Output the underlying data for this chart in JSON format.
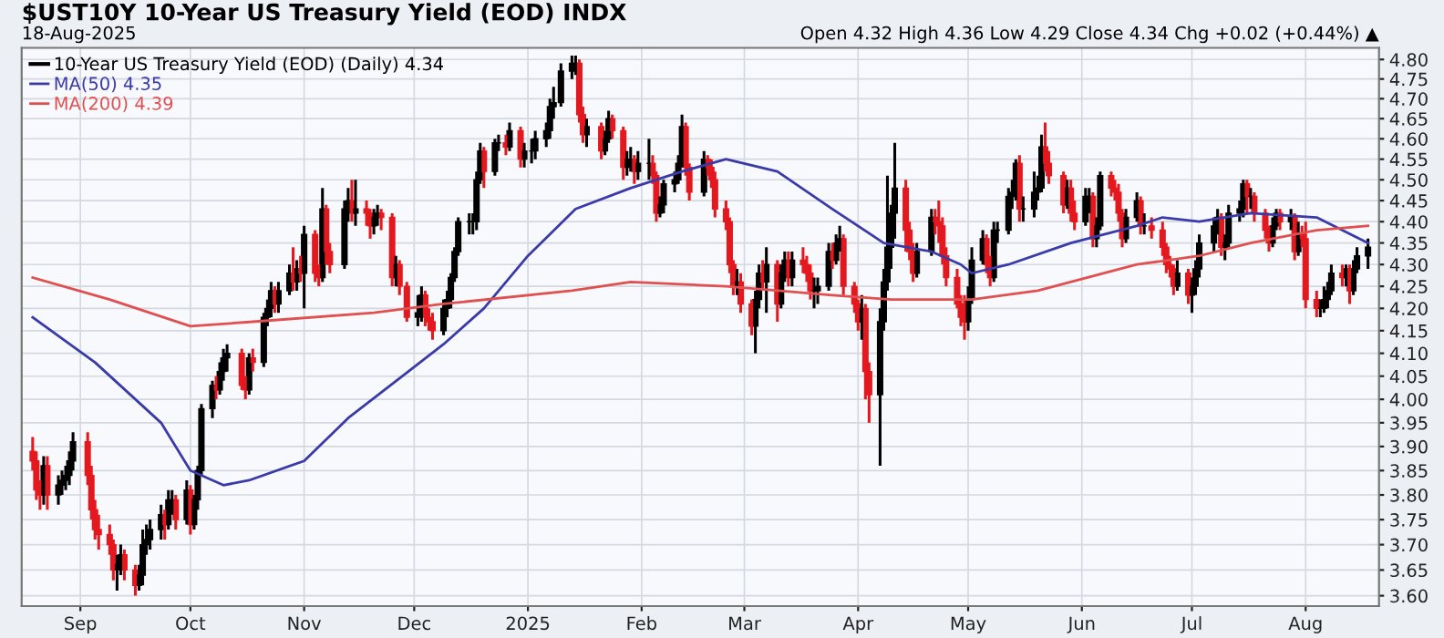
{
  "chart_data": {
    "type": "candlestick",
    "title": "$UST10Y 10-Year US Treasury Yield (EOD) INDX",
    "subtitle": "18-Aug-2025",
    "annotations": [
      "Open 4.32 High 4.36 Low 4.29 Close 4.34 Chg +0.02 (+0.44%) ▲"
    ],
    "log": true,
    "grid": true,
    "legend": "top left",
    "xlim": [
      "2024-08-16",
      "2025-08-21"
    ],
    "xticks": [
      {
        "value": "2024-09-01",
        "label": "Sep"
      },
      {
        "value": "2024-10-01",
        "label": "Oct"
      },
      {
        "value": "2024-11-01",
        "label": "Nov"
      },
      {
        "value": "2024-12-01",
        "label": "Dec"
      },
      {
        "value": "2025-01-01",
        "label": "2025"
      },
      {
        "value": "2025-02-01",
        "label": "Feb"
      },
      {
        "value": "2025-03-01",
        "label": "Mar"
      },
      {
        "value": "2025-04-01",
        "label": "Apr"
      },
      {
        "value": "2025-05-01",
        "label": "May"
      },
      {
        "value": "2025-06-01",
        "label": "Jun"
      },
      {
        "value": "2025-07-01",
        "label": "Jul"
      },
      {
        "value": "2025-08-01",
        "label": "Aug"
      }
    ],
    "ylim": [
      3.58,
      4.83
    ],
    "yticks": [
      {
        "value": 3.6,
        "label": "3.60"
      },
      3.65,
      {
        "value": 3.7,
        "label": "3.70"
      },
      3.75,
      {
        "value": 3.8,
        "label": "3.80"
      },
      3.85,
      {
        "value": 3.9,
        "label": "3.90"
      },
      3.95,
      {
        "value": 4.0,
        "label": "4.00"
      },
      4.05,
      {
        "value": 4.1,
        "label": "4.10"
      },
      4.15,
      {
        "value": 4.2,
        "label": "4.20"
      },
      4.25,
      {
        "value": 4.3,
        "label": "4.30"
      },
      4.35,
      {
        "value": 4.4,
        "label": "4.40"
      },
      4.45,
      {
        "value": 4.5,
        "label": "4.50"
      },
      4.55,
      {
        "value": 4.6,
        "label": "4.60"
      },
      4.65,
      {
        "value": 4.7,
        "label": "4.70"
      },
      4.75,
      {
        "value": 4.8,
        "label": "4.80"
      }
    ],
    "series": [
      {
        "name": "10-Year US Treasury Yield (EOD) (Daily) 4.34",
        "color": "#000000",
        "x": [
          "2024-08-19",
          "2024-08-20",
          "2024-08-21",
          "2024-08-22",
          "2024-08-23",
          "2024-08-26",
          "2024-08-27",
          "2024-08-28",
          "2024-08-29",
          "2024-08-30",
          "2024-09-03",
          "2024-09-04",
          "2024-09-05",
          "2024-09-06",
          "2024-09-09",
          "2024-09-10",
          "2024-09-11",
          "2024-09-12",
          "2024-09-13",
          "2024-09-16",
          "2024-09-17",
          "2024-09-18",
          "2024-09-19",
          "2024-09-20",
          "2024-09-23",
          "2024-09-24",
          "2024-09-25",
          "2024-09-26",
          "2024-09-27",
          "2024-09-30",
          "2024-10-01",
          "2024-10-02",
          "2024-10-03",
          "2024-10-04",
          "2024-10-07",
          "2024-10-08",
          "2024-10-09",
          "2024-10-10",
          "2024-10-11",
          "2024-10-15",
          "2024-10-16",
          "2024-10-17",
          "2024-10-18",
          "2024-10-21",
          "2024-10-22",
          "2024-10-23",
          "2024-10-24",
          "2024-10-25",
          "2024-10-28",
          "2024-10-29",
          "2024-10-30",
          "2024-10-31",
          "2024-11-01",
          "2024-11-04",
          "2024-11-05",
          "2024-11-06",
          "2024-11-07",
          "2024-11-08",
          "2024-11-12",
          "2024-11-13",
          "2024-11-14",
          "2024-11-15",
          "2024-11-18",
          "2024-11-19",
          "2024-11-20",
          "2024-11-21",
          "2024-11-22",
          "2024-11-25",
          "2024-11-26",
          "2024-11-27",
          "2024-11-29",
          "2024-12-02",
          "2024-12-03",
          "2024-12-04",
          "2024-12-05",
          "2024-12-06",
          "2024-12-09",
          "2024-12-10",
          "2024-12-11",
          "2024-12-12",
          "2024-12-13",
          "2024-12-16",
          "2024-12-17",
          "2024-12-18",
          "2024-12-19",
          "2024-12-20",
          "2024-12-23",
          "2024-12-24",
          "2024-12-26",
          "2024-12-27",
          "2024-12-30",
          "2024-12-31",
          "2025-01-02",
          "2025-01-03",
          "2025-01-06",
          "2025-01-07",
          "2025-01-08",
          "2025-01-10",
          "2025-01-13",
          "2025-01-14",
          "2025-01-15",
          "2025-01-16",
          "2025-01-17",
          "2025-01-21",
          "2025-01-22",
          "2025-01-23",
          "2025-01-24",
          "2025-01-27",
          "2025-01-28",
          "2025-01-29",
          "2025-01-30",
          "2025-01-31",
          "2025-02-03",
          "2025-02-04",
          "2025-02-05",
          "2025-02-06",
          "2025-02-07",
          "2025-02-10",
          "2025-02-11",
          "2025-02-12",
          "2025-02-13",
          "2025-02-14",
          "2025-02-18",
          "2025-02-19",
          "2025-02-20",
          "2025-02-21",
          "2025-02-24",
          "2025-02-25",
          "2025-02-26",
          "2025-02-27",
          "2025-02-28",
          "2025-03-03",
          "2025-03-04",
          "2025-03-05",
          "2025-03-06",
          "2025-03-07",
          "2025-03-10",
          "2025-03-11",
          "2025-03-12",
          "2025-03-13",
          "2025-03-14",
          "2025-03-17",
          "2025-03-18",
          "2025-03-19",
          "2025-03-20",
          "2025-03-21",
          "2025-03-24",
          "2025-03-25",
          "2025-03-26",
          "2025-03-27",
          "2025-03-28",
          "2025-03-31",
          "2025-04-01",
          "2025-04-02",
          "2025-04-03",
          "2025-04-04",
          "2025-04-07",
          "2025-04-08",
          "2025-04-09",
          "2025-04-10",
          "2025-04-11",
          "2025-04-14",
          "2025-04-15",
          "2025-04-16",
          "2025-04-17",
          "2025-04-21",
          "2025-04-22",
          "2025-04-23",
          "2025-04-24",
          "2025-04-25",
          "2025-04-28",
          "2025-04-29",
          "2025-04-30",
          "2025-05-01",
          "2025-05-02",
          "2025-05-05",
          "2025-05-06",
          "2025-05-07",
          "2025-05-08",
          "2025-05-09",
          "2025-05-12",
          "2025-05-13",
          "2025-05-14",
          "2025-05-15",
          "2025-05-16",
          "2025-05-19",
          "2025-05-20",
          "2025-05-21",
          "2025-05-22",
          "2025-05-23",
          "2025-05-27",
          "2025-05-28",
          "2025-05-29",
          "2025-05-30",
          "2025-06-02",
          "2025-06-03",
          "2025-06-04",
          "2025-06-05",
          "2025-06-06",
          "2025-06-09",
          "2025-06-10",
          "2025-06-11",
          "2025-06-12",
          "2025-06-13",
          "2025-06-16",
          "2025-06-17",
          "2025-06-18",
          "2025-06-20",
          "2025-06-23",
          "2025-06-24",
          "2025-06-25",
          "2025-06-26",
          "2025-06-27",
          "2025-06-30",
          "2025-07-01",
          "2025-07-02",
          "2025-07-03",
          "2025-07-07",
          "2025-07-08",
          "2025-07-09",
          "2025-07-10",
          "2025-07-11",
          "2025-07-14",
          "2025-07-15",
          "2025-07-16",
          "2025-07-17",
          "2025-07-18",
          "2025-07-21",
          "2025-07-22",
          "2025-07-23",
          "2025-07-24",
          "2025-07-25",
          "2025-07-28",
          "2025-07-29",
          "2025-07-30",
          "2025-07-31",
          "2025-08-01",
          "2025-08-04",
          "2025-08-05",
          "2025-08-06",
          "2025-08-07",
          "2025-08-08",
          "2025-08-11",
          "2025-08-12",
          "2025-08-13",
          "2025-08-14",
          "2025-08-15",
          "2025-08-18"
        ],
        "ohlc": [
          [
            3.89,
            3.92,
            3.85,
            3.87
          ],
          [
            3.87,
            3.89,
            3.79,
            3.81
          ],
          [
            3.81,
            3.83,
            3.77,
            3.8
          ],
          [
            3.8,
            3.88,
            3.78,
            3.86
          ],
          [
            3.86,
            3.88,
            3.77,
            3.8
          ],
          [
            3.8,
            3.84,
            3.78,
            3.82
          ],
          [
            3.82,
            3.85,
            3.8,
            3.83
          ],
          [
            3.83,
            3.86,
            3.81,
            3.84
          ],
          [
            3.84,
            3.89,
            3.82,
            3.87
          ],
          [
            3.87,
            3.93,
            3.85,
            3.91
          ],
          [
            3.91,
            3.93,
            3.82,
            3.84
          ],
          [
            3.84,
            3.86,
            3.75,
            3.77
          ],
          [
            3.77,
            3.79,
            3.71,
            3.73
          ],
          [
            3.73,
            3.76,
            3.69,
            3.72
          ],
          [
            3.72,
            3.74,
            3.68,
            3.7
          ],
          [
            3.7,
            3.71,
            3.63,
            3.65
          ],
          [
            3.65,
            3.68,
            3.61,
            3.66
          ],
          [
            3.66,
            3.7,
            3.64,
            3.68
          ],
          [
            3.68,
            3.69,
            3.63,
            3.65
          ],
          [
            3.65,
            3.66,
            3.6,
            3.62
          ],
          [
            3.62,
            3.66,
            3.61,
            3.64
          ],
          [
            3.64,
            3.73,
            3.62,
            3.7
          ],
          [
            3.7,
            3.74,
            3.68,
            3.71
          ],
          [
            3.71,
            3.75,
            3.69,
            3.73
          ],
          [
            3.73,
            3.78,
            3.71,
            3.76
          ],
          [
            3.76,
            3.77,
            3.71,
            3.74
          ],
          [
            3.74,
            3.81,
            3.73,
            3.79
          ],
          [
            3.79,
            3.81,
            3.76,
            3.79
          ],
          [
            3.79,
            3.8,
            3.73,
            3.75
          ],
          [
            3.75,
            3.83,
            3.74,
            3.81
          ],
          [
            3.81,
            3.82,
            3.72,
            3.74
          ],
          [
            3.74,
            3.8,
            3.73,
            3.79
          ],
          [
            3.79,
            3.86,
            3.77,
            3.85
          ],
          [
            3.85,
            3.99,
            3.84,
            3.98
          ],
          [
            3.98,
            4.04,
            3.96,
            4.03
          ],
          [
            4.03,
            4.05,
            4.0,
            4.02
          ],
          [
            4.02,
            4.08,
            4.01,
            4.06
          ],
          [
            4.06,
            4.11,
            4.04,
            4.09
          ],
          [
            4.09,
            4.12,
            4.06,
            4.1
          ],
          [
            4.1,
            4.11,
            4.02,
            4.03
          ],
          [
            4.03,
            4.05,
            4.0,
            4.02
          ],
          [
            4.02,
            4.1,
            4.01,
            4.09
          ],
          [
            4.09,
            4.11,
            4.06,
            4.08
          ],
          [
            4.08,
            4.19,
            4.07,
            4.18
          ],
          [
            4.18,
            4.22,
            4.16,
            4.2
          ],
          [
            4.2,
            4.26,
            4.18,
            4.24
          ],
          [
            4.24,
            4.25,
            4.19,
            4.21
          ],
          [
            4.21,
            4.26,
            4.19,
            4.24
          ],
          [
            4.24,
            4.3,
            4.23,
            4.28
          ],
          [
            4.28,
            4.34,
            4.24,
            4.26
          ],
          [
            4.26,
            4.31,
            4.24,
            4.29
          ],
          [
            4.29,
            4.32,
            4.26,
            4.28
          ],
          [
            4.28,
            4.39,
            4.2,
            4.37
          ],
          [
            4.37,
            4.38,
            4.26,
            4.28
          ],
          [
            4.28,
            4.3,
            4.25,
            4.27
          ],
          [
            4.27,
            4.48,
            4.26,
            4.43
          ],
          [
            4.43,
            4.44,
            4.3,
            4.33
          ],
          [
            4.33,
            4.35,
            4.28,
            4.3
          ],
          [
            4.3,
            4.45,
            4.29,
            4.43
          ],
          [
            4.43,
            4.48,
            4.4,
            4.45
          ],
          [
            4.45,
            4.5,
            4.4,
            4.42
          ],
          [
            4.42,
            4.5,
            4.39,
            4.43
          ],
          [
            4.43,
            4.45,
            4.39,
            4.42
          ],
          [
            4.42,
            4.43,
            4.36,
            4.39
          ],
          [
            4.39,
            4.43,
            4.37,
            4.41
          ],
          [
            4.41,
            4.44,
            4.39,
            4.42
          ],
          [
            4.42,
            4.43,
            4.38,
            4.41
          ],
          [
            4.41,
            4.42,
            4.25,
            4.27
          ],
          [
            4.27,
            4.32,
            4.25,
            4.3
          ],
          [
            4.3,
            4.31,
            4.23,
            4.25
          ],
          [
            4.25,
            4.26,
            4.17,
            4.18
          ],
          [
            4.18,
            4.23,
            4.16,
            4.19
          ],
          [
            4.19,
            4.25,
            4.17,
            4.23
          ],
          [
            4.23,
            4.24,
            4.16,
            4.18
          ],
          [
            4.18,
            4.2,
            4.15,
            4.17
          ],
          [
            4.17,
            4.19,
            4.13,
            4.15
          ],
          [
            4.15,
            4.22,
            4.14,
            4.2
          ],
          [
            4.2,
            4.24,
            4.18,
            4.22
          ],
          [
            4.22,
            4.28,
            4.2,
            4.27
          ],
          [
            4.27,
            4.34,
            4.26,
            4.33
          ],
          [
            4.33,
            4.41,
            4.32,
            4.4
          ],
          [
            4.4,
            4.42,
            4.37,
            4.4
          ],
          [
            4.4,
            4.42,
            4.37,
            4.4
          ],
          [
            4.4,
            4.52,
            4.38,
            4.5
          ],
          [
            4.5,
            4.59,
            4.49,
            4.57
          ],
          [
            4.57,
            4.58,
            4.48,
            4.52
          ],
          [
            4.52,
            4.6,
            4.51,
            4.59
          ],
          [
            4.59,
            4.61,
            4.57,
            4.59
          ],
          [
            4.59,
            4.61,
            4.56,
            4.58
          ],
          [
            4.58,
            4.64,
            4.57,
            4.62
          ],
          [
            4.62,
            4.63,
            4.53,
            4.55
          ],
          [
            4.55,
            4.59,
            4.53,
            4.57
          ],
          [
            4.57,
            4.6,
            4.54,
            4.57
          ],
          [
            4.57,
            4.62,
            4.55,
            4.6
          ],
          [
            4.6,
            4.64,
            4.58,
            4.62
          ],
          [
            4.62,
            4.7,
            4.6,
            4.68
          ],
          [
            4.68,
            4.73,
            4.65,
            4.69
          ],
          [
            4.69,
            4.79,
            4.68,
            4.77
          ],
          [
            4.77,
            4.81,
            4.75,
            4.79
          ],
          [
            4.79,
            4.81,
            4.76,
            4.79
          ],
          [
            4.79,
            4.8,
            4.64,
            4.66
          ],
          [
            4.66,
            4.68,
            4.59,
            4.61
          ],
          [
            4.61,
            4.65,
            4.58,
            4.63
          ],
          [
            4.63,
            4.64,
            4.55,
            4.57
          ],
          [
            4.57,
            4.62,
            4.56,
            4.6
          ],
          [
            4.6,
            4.67,
            4.59,
            4.65
          ],
          [
            4.65,
            4.66,
            4.6,
            4.62
          ],
          [
            4.62,
            4.63,
            4.5,
            4.53
          ],
          [
            4.53,
            4.57,
            4.51,
            4.55
          ],
          [
            4.55,
            4.58,
            4.52,
            4.55
          ],
          [
            4.55,
            4.56,
            4.49,
            4.52
          ],
          [
            4.52,
            4.57,
            4.5,
            4.54
          ],
          [
            4.54,
            4.6,
            4.5,
            4.54
          ],
          [
            4.54,
            4.56,
            4.49,
            4.51
          ],
          [
            4.51,
            4.52,
            4.4,
            4.42
          ],
          [
            4.42,
            4.46,
            4.41,
            4.44
          ],
          [
            4.44,
            4.5,
            4.42,
            4.49
          ],
          [
            4.49,
            4.52,
            4.47,
            4.5
          ],
          [
            4.5,
            4.56,
            4.49,
            4.54
          ],
          [
            4.54,
            4.66,
            4.53,
            4.63
          ],
          [
            4.63,
            4.64,
            4.51,
            4.53
          ],
          [
            4.53,
            4.54,
            4.45,
            4.47
          ],
          [
            4.47,
            4.57,
            4.46,
            4.55
          ],
          [
            4.55,
            4.56,
            4.51,
            4.53
          ],
          [
            4.53,
            4.55,
            4.48,
            4.5
          ],
          [
            4.5,
            4.52,
            4.41,
            4.43
          ],
          [
            4.43,
            4.45,
            4.38,
            4.4
          ],
          [
            4.4,
            4.41,
            4.28,
            4.3
          ],
          [
            4.3,
            4.31,
            4.23,
            4.25
          ],
          [
            4.25,
            4.29,
            4.23,
            4.26
          ],
          [
            4.26,
            4.28,
            4.19,
            4.21
          ],
          [
            4.21,
            4.22,
            4.14,
            4.16
          ],
          [
            4.16,
            4.24,
            4.1,
            4.22
          ],
          [
            4.22,
            4.3,
            4.2,
            4.28
          ],
          [
            4.28,
            4.31,
            4.24,
            4.26
          ],
          [
            4.26,
            4.34,
            4.19,
            4.3
          ],
          [
            4.3,
            4.31,
            4.17,
            4.21
          ],
          [
            4.21,
            4.3,
            4.2,
            4.28
          ],
          [
            4.28,
            4.33,
            4.26,
            4.31
          ],
          [
            4.31,
            4.33,
            4.25,
            4.27
          ],
          [
            4.27,
            4.33,
            4.25,
            4.31
          ],
          [
            4.31,
            4.34,
            4.28,
            4.3
          ],
          [
            4.3,
            4.32,
            4.26,
            4.28
          ],
          [
            4.28,
            4.3,
            4.22,
            4.24
          ],
          [
            4.24,
            4.27,
            4.2,
            4.24
          ],
          [
            4.24,
            4.27,
            4.21,
            4.25
          ],
          [
            4.25,
            4.35,
            4.24,
            4.33
          ],
          [
            4.33,
            4.35,
            4.29,
            4.31
          ],
          [
            4.31,
            4.37,
            4.3,
            4.35
          ],
          [
            4.35,
            4.39,
            4.33,
            4.36
          ],
          [
            4.36,
            4.37,
            4.23,
            4.25
          ],
          [
            4.25,
            4.26,
            4.19,
            4.21
          ],
          [
            4.21,
            4.22,
            4.15,
            4.17
          ],
          [
            4.17,
            4.23,
            4.13,
            4.2
          ],
          [
            4.2,
            4.21,
            4.0,
            4.06
          ],
          [
            4.06,
            4.08,
            3.95,
            4.01
          ],
          [
            4.01,
            4.2,
            3.86,
            4.17
          ],
          [
            4.17,
            4.29,
            4.15,
            4.26
          ],
          [
            4.26,
            4.51,
            4.24,
            4.34
          ],
          [
            4.34,
            4.44,
            4.29,
            4.42
          ],
          [
            4.42,
            4.59,
            4.36,
            4.48
          ],
          [
            4.48,
            4.5,
            4.33,
            4.38
          ],
          [
            4.38,
            4.4,
            4.31,
            4.33
          ],
          [
            4.33,
            4.35,
            4.26,
            4.28
          ],
          [
            4.28,
            4.35,
            4.27,
            4.33
          ],
          [
            4.33,
            4.43,
            4.32,
            4.41
          ],
          [
            4.41,
            4.43,
            4.37,
            4.4
          ],
          [
            4.4,
            4.45,
            4.35,
            4.39
          ],
          [
            4.39,
            4.41,
            4.3,
            4.32
          ],
          [
            4.32,
            4.34,
            4.25,
            4.27
          ],
          [
            4.27,
            4.29,
            4.2,
            4.21
          ],
          [
            4.21,
            4.23,
            4.16,
            4.18
          ],
          [
            4.18,
            4.23,
            4.13,
            4.17
          ],
          [
            4.17,
            4.25,
            4.15,
            4.22
          ],
          [
            4.22,
            4.34,
            4.21,
            4.31
          ],
          [
            4.31,
            4.38,
            4.3,
            4.36
          ],
          [
            4.36,
            4.37,
            4.28,
            4.3
          ],
          [
            4.3,
            4.32,
            4.25,
            4.27
          ],
          [
            4.27,
            4.4,
            4.26,
            4.38
          ],
          [
            4.38,
            4.4,
            4.35,
            4.38
          ],
          [
            4.38,
            4.48,
            4.37,
            4.46
          ],
          [
            4.46,
            4.5,
            4.43,
            4.47
          ],
          [
            4.47,
            4.55,
            4.45,
            4.54
          ],
          [
            4.54,
            4.56,
            4.4,
            4.43
          ],
          [
            4.43,
            4.46,
            4.4,
            4.43
          ],
          [
            4.43,
            4.52,
            4.41,
            4.47
          ],
          [
            4.47,
            4.51,
            4.45,
            4.48
          ],
          [
            4.48,
            4.61,
            4.47,
            4.58
          ],
          [
            4.58,
            4.64,
            4.52,
            4.54
          ],
          [
            4.54,
            4.57,
            4.49,
            4.51
          ],
          [
            4.51,
            4.52,
            4.42,
            4.44
          ],
          [
            4.44,
            4.5,
            4.43,
            4.48
          ],
          [
            4.48,
            4.5,
            4.4,
            4.42
          ],
          [
            4.42,
            4.45,
            4.38,
            4.4
          ],
          [
            4.4,
            4.48,
            4.39,
            4.46
          ],
          [
            4.46,
            4.48,
            4.42,
            4.46
          ],
          [
            4.46,
            4.47,
            4.34,
            4.36
          ],
          [
            4.36,
            4.41,
            4.34,
            4.39
          ],
          [
            4.39,
            4.52,
            4.38,
            4.51
          ],
          [
            4.51,
            4.52,
            4.46,
            4.48
          ],
          [
            4.48,
            4.5,
            4.45,
            4.47
          ],
          [
            4.47,
            4.49,
            4.4,
            4.42
          ],
          [
            4.42,
            4.43,
            4.34,
            4.36
          ],
          [
            4.36,
            4.43,
            4.35,
            4.41
          ],
          [
            4.41,
            4.47,
            4.4,
            4.45
          ],
          [
            4.45,
            4.46,
            4.37,
            4.39
          ],
          [
            4.39,
            4.42,
            4.37,
            4.39
          ],
          [
            4.39,
            4.41,
            4.36,
            4.38
          ],
          [
            4.38,
            4.4,
            4.32,
            4.34
          ],
          [
            4.34,
            4.35,
            4.28,
            4.3
          ],
          [
            4.3,
            4.32,
            4.27,
            4.29
          ],
          [
            4.29,
            4.3,
            4.23,
            4.25
          ],
          [
            4.25,
            4.31,
            4.24,
            4.28
          ],
          [
            4.28,
            4.29,
            4.21,
            4.23
          ],
          [
            4.23,
            4.27,
            4.19,
            4.25
          ],
          [
            4.25,
            4.31,
            4.23,
            4.29
          ],
          [
            4.29,
            4.37,
            4.27,
            4.35
          ],
          [
            4.35,
            4.41,
            4.33,
            4.39
          ],
          [
            4.39,
            4.43,
            4.37,
            4.41
          ],
          [
            4.41,
            4.42,
            4.32,
            4.34
          ],
          [
            4.34,
            4.37,
            4.31,
            4.35
          ],
          [
            4.35,
            4.44,
            4.34,
            4.42
          ],
          [
            4.42,
            4.45,
            4.4,
            4.43
          ],
          [
            4.43,
            4.5,
            4.41,
            4.49
          ],
          [
            4.49,
            4.5,
            4.42,
            4.46
          ],
          [
            4.46,
            4.48,
            4.43,
            4.46
          ],
          [
            4.46,
            4.47,
            4.4,
            4.42
          ],
          [
            4.42,
            4.43,
            4.36,
            4.38
          ],
          [
            4.38,
            4.39,
            4.33,
            4.35
          ],
          [
            4.35,
            4.41,
            4.34,
            4.39
          ],
          [
            4.39,
            4.43,
            4.38,
            4.42
          ],
          [
            4.42,
            4.43,
            4.38,
            4.4
          ],
          [
            4.4,
            4.43,
            4.38,
            4.41
          ],
          [
            4.41,
            4.42,
            4.31,
            4.33
          ],
          [
            4.33,
            4.4,
            4.32,
            4.37
          ],
          [
            4.37,
            4.39,
            4.34,
            4.36
          ],
          [
            4.36,
            4.4,
            4.2,
            4.22
          ],
          [
            4.22,
            4.24,
            4.18,
            4.2
          ],
          [
            4.2,
            4.22,
            4.18,
            4.2
          ],
          [
            4.2,
            4.25,
            4.19,
            4.22
          ],
          [
            4.22,
            4.26,
            4.2,
            4.24
          ],
          [
            4.24,
            4.3,
            4.23,
            4.28
          ],
          [
            4.28,
            4.3,
            4.25,
            4.27
          ],
          [
            4.27,
            4.3,
            4.25,
            4.29
          ],
          [
            4.29,
            4.3,
            4.21,
            4.24
          ],
          [
            4.24,
            4.31,
            4.23,
            4.29
          ],
          [
            4.29,
            4.34,
            4.28,
            4.32
          ],
          [
            4.32,
            4.36,
            4.29,
            4.34
          ]
        ],
        "colors": [
          "#e3191f",
          "#e3191f",
          "#e3191f",
          "#000000",
          "#e3191f",
          "#000000",
          "#000000",
          "#000000",
          "#000000",
          "#000000",
          "#e3191f",
          "#e3191f",
          "#e3191f",
          "#e3191f",
          "#e3191f",
          "#e3191f",
          "#000000",
          "#000000",
          "#e3191f",
          "#e3191f",
          "#000000",
          "#000000",
          "#000000",
          "#000000",
          "#000000",
          "#e3191f",
          "#000000",
          "#000000",
          "#e3191f",
          "#000000",
          "#e3191f",
          "#000000",
          "#000000",
          "#000000",
          "#000000",
          "#e3191f",
          "#000000",
          "#000000",
          "#000000",
          "#e3191f",
          "#e3191f",
          "#000000",
          "#e3191f",
          "#000000",
          "#000000",
          "#000000",
          "#e3191f",
          "#000000",
          "#000000",
          "#e3191f",
          "#000000",
          "#e3191f",
          "#000000",
          "#e3191f",
          "#e3191f",
          "#000000",
          "#e3191f",
          "#e3191f",
          "#000000",
          "#000000",
          "#e3191f",
          "#000000",
          "#e3191f",
          "#e3191f",
          "#000000",
          "#000000",
          "#e3191f",
          "#e3191f",
          "#000000",
          "#e3191f",
          "#e3191f",
          "#000000",
          "#000000",
          "#e3191f",
          "#e3191f",
          "#e3191f",
          "#000000",
          "#000000",
          "#000000",
          "#000000",
          "#000000",
          "#000000",
          "#000000",
          "#000000",
          "#000000",
          "#e3191f",
          "#000000",
          "#000000",
          "#e3191f",
          "#000000",
          "#e3191f",
          "#000000",
          "#000000",
          "#000000",
          "#000000",
          "#000000",
          "#000000",
          "#000000",
          "#000000",
          "#000000",
          "#e3191f",
          "#e3191f",
          "#000000",
          "#e3191f",
          "#000000",
          "#000000",
          "#e3191f",
          "#e3191f",
          "#000000",
          "#000000",
          "#e3191f",
          "#000000",
          "#000000",
          "#e3191f",
          "#e3191f",
          "#000000",
          "#000000",
          "#000000",
          "#000000",
          "#000000",
          "#e3191f",
          "#e3191f",
          "#000000",
          "#e3191f",
          "#e3191f",
          "#e3191f",
          "#e3191f",
          "#e3191f",
          "#e3191f",
          "#000000",
          "#e3191f",
          "#e3191f",
          "#000000",
          "#000000",
          "#e3191f",
          "#000000",
          "#e3191f",
          "#000000",
          "#000000",
          "#e3191f",
          "#000000",
          "#e3191f",
          "#e3191f",
          "#e3191f",
          "#000000",
          "#000000",
          "#000000",
          "#e3191f",
          "#000000",
          "#000000",
          "#e3191f",
          "#e3191f",
          "#e3191f",
          "#000000",
          "#e3191f",
          "#e3191f",
          "#000000",
          "#000000",
          "#000000",
          "#000000",
          "#000000",
          "#e3191f",
          "#e3191f",
          "#e3191f",
          "#000000",
          "#000000",
          "#e3191f",
          "#e3191f",
          "#e3191f",
          "#e3191f",
          "#e3191f",
          "#e3191f",
          "#e3191f",
          "#000000",
          "#000000",
          "#000000",
          "#e3191f",
          "#e3191f",
          "#000000",
          "#000000",
          "#000000",
          "#000000",
          "#000000",
          "#e3191f",
          "#000000",
          "#000000",
          "#000000",
          "#000000",
          "#e3191f",
          "#e3191f",
          "#e3191f",
          "#000000",
          "#e3191f",
          "#e3191f",
          "#000000",
          "#000000",
          "#e3191f",
          "#000000",
          "#000000",
          "#e3191f",
          "#e3191f",
          "#e3191f",
          "#e3191f",
          "#000000",
          "#000000",
          "#e3191f",
          "#000000",
          "#e3191f",
          "#e3191f",
          "#e3191f",
          "#e3191f",
          "#e3191f",
          "#000000",
          "#e3191f",
          "#000000",
          "#000000",
          "#000000",
          "#000000",
          "#000000",
          "#e3191f",
          "#000000",
          "#000000",
          "#000000",
          "#000000",
          "#e3191f",
          "#000000",
          "#e3191f",
          "#e3191f",
          "#e3191f",
          "#000000",
          "#000000",
          "#e3191f",
          "#000000",
          "#e3191f",
          "#000000",
          "#e3191f",
          "#e3191f",
          "#e3191f",
          "#000000",
          "#000000",
          "#000000",
          "#000000",
          "#e3191f",
          "#000000",
          "#e3191f",
          "#000000",
          "#000000",
          "#000000"
        ]
      },
      {
        "name": "MA(50) 4.35",
        "type": "line",
        "color": "#3a3aa8",
        "x": [
          "2024-08-19",
          "2024-09-05",
          "2024-09-23",
          "2024-10-01",
          "2024-10-10",
          "2024-10-17",
          "2024-11-01",
          "2024-11-13",
          "2024-12-01",
          "2024-12-09",
          "2024-12-20",
          "2025-01-01",
          "2025-01-14",
          "2025-01-29",
          "2025-02-12",
          "2025-02-24",
          "2025-03-10",
          "2025-03-25",
          "2025-04-08",
          "2025-04-21",
          "2025-04-29",
          "2025-05-02",
          "2025-05-12",
          "2025-05-29",
          "2025-06-16",
          "2025-06-23",
          "2025-07-03",
          "2025-07-17",
          "2025-08-04",
          "2025-08-18"
        ],
        "values": [
          4.18,
          4.08,
          3.95,
          3.85,
          3.82,
          3.83,
          3.87,
          3.96,
          4.07,
          4.12,
          4.2,
          4.32,
          4.43,
          4.48,
          4.52,
          4.55,
          4.52,
          4.43,
          4.35,
          4.33,
          4.3,
          4.28,
          4.3,
          4.35,
          4.39,
          4.41,
          4.4,
          4.42,
          4.41,
          4.35
        ]
      },
      {
        "name": "MA(200) 4.39",
        "type": "line",
        "color": "#e05050",
        "x": [
          "2024-08-19",
          "2024-09-09",
          "2024-10-01",
          "2024-10-18",
          "2024-11-20",
          "2024-12-09",
          "2025-01-13",
          "2025-01-29",
          "2025-02-24",
          "2025-03-25",
          "2025-04-10",
          "2025-05-02",
          "2025-05-20",
          "2025-06-16",
          "2025-07-03",
          "2025-07-17",
          "2025-08-04",
          "2025-08-18"
        ],
        "values": [
          4.27,
          4.22,
          4.16,
          4.17,
          4.19,
          4.21,
          4.24,
          4.26,
          4.25,
          4.23,
          4.22,
          4.22,
          4.24,
          4.3,
          4.32,
          4.35,
          4.38,
          4.39
        ]
      }
    ]
  }
}
